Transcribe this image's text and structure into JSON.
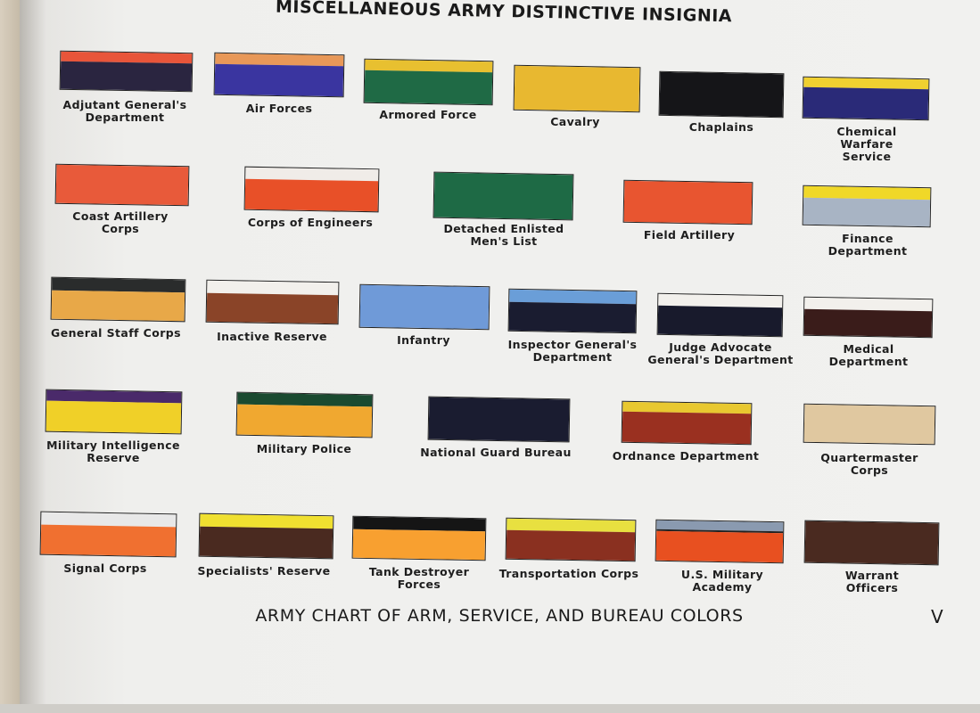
{
  "title": "MISCELLANEOUS ARMY DISTINCTIVE INSIGNIA",
  "footer": "ARMY CHART OF ARM, SERVICE, AND BUREAU COLORS",
  "page_number": "V",
  "swatches": [
    {
      "label": "Adjutant General's\nDepartment",
      "stripes": [
        {
          "color": "#e8553a",
          "share": 0.25
        },
        {
          "color": "#2a2540",
          "share": 0.75
        }
      ]
    },
    {
      "label": "Air Forces",
      "stripes": [
        {
          "color": "#e89858",
          "share": 0.27
        },
        {
          "color": "#3a35a0",
          "share": 0.73
        }
      ]
    },
    {
      "label": "Armored Force",
      "stripes": [
        {
          "color": "#e8c030",
          "share": 0.25
        },
        {
          "color": "#1f6a45",
          "share": 0.75
        }
      ]
    },
    {
      "label": "Cavalry",
      "stripes": [
        {
          "color": "#e8b830",
          "share": 1
        }
      ]
    },
    {
      "label": "Chaplains",
      "stripes": [
        {
          "color": "#151518",
          "share": 1
        }
      ]
    },
    {
      "label": "Chemical Warfare\nService",
      "stripes": [
        {
          "color": "#f0d030",
          "share": 0.25
        },
        {
          "color": "#2a2a78",
          "share": 0.75
        }
      ]
    },
    {
      "label": "Coast Artillery\nCorps",
      "stripes": [
        {
          "color": "#e85a3a",
          "share": 1
        }
      ]
    },
    {
      "label": "Corps of Engineers",
      "stripes": [
        {
          "color": "#f0ece8",
          "share": 0.27
        },
        {
          "color": "#e85028",
          "share": 0.73
        }
      ]
    },
    {
      "label": "Detached Enlisted\nMen's List",
      "stripes": [
        {
          "color": "#1e6a45",
          "share": 1
        }
      ]
    },
    {
      "label": "Field Artillery",
      "stripes": [
        {
          "color": "#e85530",
          "share": 1
        }
      ]
    },
    {
      "label": "Finance Department",
      "stripes": [
        {
          "color": "#f0d828",
          "share": 0.3
        },
        {
          "color": "#a8b4c4",
          "share": 0.7
        }
      ]
    },
    {
      "label": "General Staff Corps",
      "stripes": [
        {
          "color": "#2a2c2c",
          "share": 0.3
        },
        {
          "color": "#e8a848",
          "share": 0.7
        }
      ]
    },
    {
      "label": "Inactive Reserve",
      "stripes": [
        {
          "color": "#f2f0ec",
          "share": 0.3
        },
        {
          "color": "#8a4428",
          "share": 0.7
        }
      ]
    },
    {
      "label": "Infantry",
      "stripes": [
        {
          "color": "#6f9ad8",
          "share": 1
        }
      ]
    },
    {
      "label": "Inspector General's\nDepartment",
      "stripes": [
        {
          "color": "#6a9ed8",
          "share": 0.3
        },
        {
          "color": "#1a1c30",
          "share": 0.7
        }
      ]
    },
    {
      "label": "Judge Advocate\nGeneral's Department",
      "stripes": [
        {
          "color": "#f2f0ec",
          "share": 0.28
        },
        {
          "color": "#181a2c",
          "share": 0.72
        }
      ]
    },
    {
      "label": "Medical Department",
      "stripes": [
        {
          "color": "#f2f0ec",
          "share": 0.3
        },
        {
          "color": "#3a1c1a",
          "share": 0.7
        }
      ]
    },
    {
      "label": "Military Intelligence\nReserve",
      "stripes": [
        {
          "color": "#4a2a6a",
          "share": 0.25
        },
        {
          "color": "#f0d028",
          "share": 0.75
        }
      ]
    },
    {
      "label": "Military Police",
      "stripes": [
        {
          "color": "#1a4a30",
          "share": 0.27
        },
        {
          "color": "#f0a830",
          "share": 0.73
        }
      ]
    },
    {
      "label": "National Guard Bureau",
      "stripes": [
        {
          "color": "#1a1c30",
          "share": 1
        }
      ]
    },
    {
      "label": "Ordnance Department",
      "stripes": [
        {
          "color": "#e8c830",
          "share": 0.25
        },
        {
          "color": "#9a3020",
          "share": 0.75
        }
      ]
    },
    {
      "label": "Quartermaster Corps",
      "stripes": [
        {
          "color": "#e0c8a0",
          "share": 1
        }
      ]
    },
    {
      "label": "Signal Corps",
      "stripes": [
        {
          "color": "#e8e8e8",
          "share": 0.3
        },
        {
          "color": "#f07030",
          "share": 0.7
        }
      ]
    },
    {
      "label": "Specialists' Reserve",
      "stripes": [
        {
          "color": "#f0e030",
          "share": 0.3
        },
        {
          "color": "#4a2a20",
          "share": 0.7
        }
      ]
    },
    {
      "label": "Tank Destroyer\nForces",
      "stripes": [
        {
          "color": "#151515",
          "share": 0.3
        },
        {
          "color": "#f8a030",
          "share": 0.7
        }
      ]
    },
    {
      "label": "Transportation Corps",
      "stripes": [
        {
          "color": "#e8e040",
          "share": 0.28
        },
        {
          "color": "#8a3020",
          "share": 0.72
        }
      ]
    },
    {
      "label": "U.S. Military\nAcademy",
      "stripes": [
        {
          "color": "#8a9ab0",
          "share": 0.23
        },
        {
          "color": "#222222",
          "share": 0.04
        },
        {
          "color": "#e85020",
          "share": 0.73
        }
      ]
    },
    {
      "label": "Warrant Officers",
      "stripes": [
        {
          "color": "#4a2a20",
          "share": 1
        }
      ]
    }
  ]
}
